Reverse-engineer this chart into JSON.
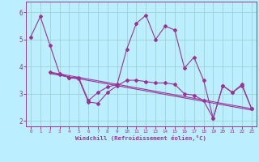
{
  "bg_color": "#bbeeff",
  "line_color": "#993399",
  "grid_color": "#99cccc",
  "xlabel": "Windchill (Refroidissement éolien,°C)",
  "ylim": [
    1.8,
    6.4
  ],
  "xlim": [
    -0.5,
    23.5
  ],
  "yticks": [
    2,
    3,
    4,
    5,
    6
  ],
  "xticks": [
    0,
    1,
    2,
    3,
    4,
    5,
    6,
    7,
    8,
    9,
    10,
    11,
    12,
    13,
    14,
    15,
    16,
    17,
    18,
    19,
    20,
    21,
    22,
    23
  ],
  "series1": {
    "x": [
      0,
      1,
      2,
      3,
      4,
      5,
      6,
      7,
      8,
      9,
      10,
      11,
      12,
      13,
      14,
      15,
      16,
      17,
      18,
      19,
      20,
      21,
      22,
      23
    ],
    "y": [
      5.1,
      5.85,
      4.8,
      3.75,
      3.6,
      3.6,
      2.75,
      3.05,
      3.25,
      3.35,
      4.65,
      5.6,
      5.9,
      5.0,
      5.5,
      5.35,
      3.95,
      4.35,
      3.5,
      2.1,
      3.3,
      3.05,
      3.35,
      2.45
    ]
  },
  "series2": {
    "x": [
      2,
      3,
      4,
      5,
      6,
      7,
      8,
      9,
      10,
      11,
      12,
      13,
      14,
      15,
      16,
      17,
      18,
      19,
      20,
      21,
      22,
      23
    ],
    "y": [
      3.8,
      3.7,
      3.6,
      3.55,
      2.7,
      2.65,
      3.05,
      3.3,
      3.5,
      3.5,
      3.45,
      3.4,
      3.4,
      3.35,
      3.0,
      2.95,
      2.75,
      2.1,
      3.3,
      3.05,
      3.3,
      2.45
    ]
  },
  "series3_line": {
    "x": [
      2,
      23
    ],
    "y": [
      3.8,
      2.45
    ]
  },
  "series4_line": {
    "x": [
      2,
      23
    ],
    "y": [
      3.75,
      2.4
    ]
  }
}
